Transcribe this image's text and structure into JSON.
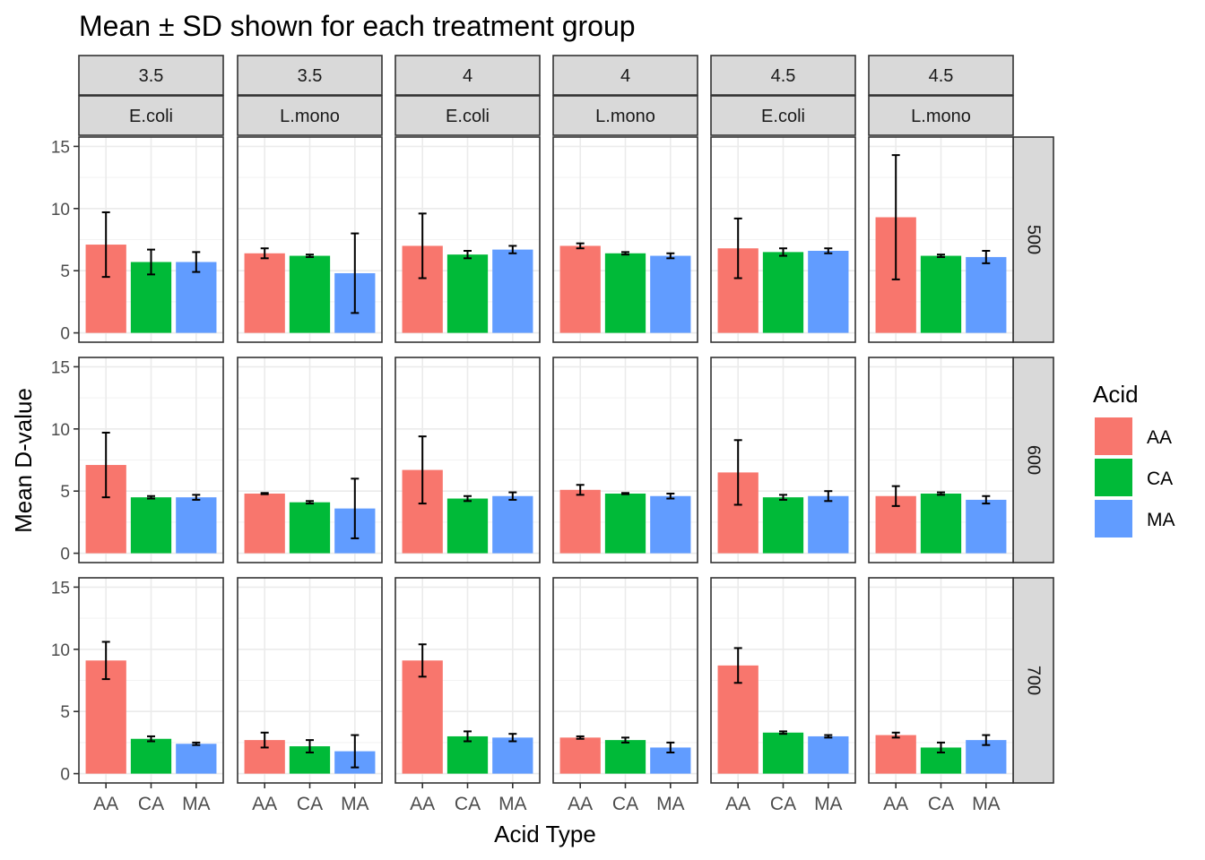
{
  "chart_data": {
    "type": "bar",
    "title": "Mean ± SD shown for each treatment group",
    "xlabel": "Acid Type",
    "ylabel": "Mean D-value",
    "ylim": [
      0,
      15
    ],
    "yticks": [
      0,
      5,
      10,
      15
    ],
    "categories": [
      "AA",
      "CA",
      "MA"
    ],
    "legend": {
      "title": "Acid",
      "position": "right",
      "entries": [
        {
          "label": "AA",
          "color": "#F8766D"
        },
        {
          "label": "CA",
          "color": "#00BA38"
        },
        {
          "label": "MA",
          "color": "#619CFF"
        }
      ]
    },
    "column_facets": [
      {
        "ph": "3.5",
        "organism": "E.coli"
      },
      {
        "ph": "3.5",
        "organism": "L.mono"
      },
      {
        "ph": "4",
        "organism": "E.coli"
      },
      {
        "ph": "4",
        "organism": "L.mono"
      },
      {
        "ph": "4.5",
        "organism": "E.coli"
      },
      {
        "ph": "4.5",
        "organism": "L.mono"
      }
    ],
    "row_facets": [
      "500",
      "600",
      "700"
    ],
    "panels": [
      [
        {
          "means": [
            7.1,
            5.7,
            5.7
          ],
          "sd": [
            2.6,
            1.0,
            0.8
          ]
        },
        {
          "means": [
            6.4,
            6.2,
            4.8
          ],
          "sd": [
            0.4,
            0.1,
            3.2
          ]
        },
        {
          "means": [
            7.0,
            6.3,
            6.7
          ],
          "sd": [
            2.6,
            0.3,
            0.3
          ]
        },
        {
          "means": [
            7.0,
            6.4,
            6.2
          ],
          "sd": [
            0.2,
            0.1,
            0.2
          ]
        },
        {
          "means": [
            6.8,
            6.5,
            6.6
          ],
          "sd": [
            2.4,
            0.3,
            0.2
          ]
        },
        {
          "means": [
            9.3,
            6.2,
            6.1
          ],
          "sd": [
            5.0,
            0.1,
            0.5
          ]
        }
      ],
      [
        {
          "means": [
            7.1,
            4.5,
            4.5
          ],
          "sd": [
            2.6,
            0.1,
            0.2
          ]
        },
        {
          "means": [
            4.8,
            4.1,
            3.6
          ],
          "sd": [
            0.05,
            0.1,
            2.4
          ]
        },
        {
          "means": [
            6.7,
            4.4,
            4.6
          ],
          "sd": [
            2.7,
            0.2,
            0.3
          ]
        },
        {
          "means": [
            5.1,
            4.8,
            4.6
          ],
          "sd": [
            0.4,
            0.05,
            0.2
          ]
        },
        {
          "means": [
            6.5,
            4.5,
            4.6
          ],
          "sd": [
            2.6,
            0.2,
            0.4
          ]
        },
        {
          "means": [
            4.6,
            4.8,
            4.3
          ],
          "sd": [
            0.8,
            0.1,
            0.3
          ]
        }
      ],
      [
        {
          "means": [
            9.1,
            2.8,
            2.4
          ],
          "sd": [
            1.5,
            0.2,
            0.1
          ]
        },
        {
          "means": [
            2.7,
            2.2,
            1.8
          ],
          "sd": [
            0.6,
            0.5,
            1.3
          ]
        },
        {
          "means": [
            9.1,
            3.0,
            2.9
          ],
          "sd": [
            1.3,
            0.4,
            0.3
          ]
        },
        {
          "means": [
            2.9,
            2.7,
            2.1
          ],
          "sd": [
            0.1,
            0.2,
            0.4
          ]
        },
        {
          "means": [
            8.7,
            3.3,
            3.0
          ],
          "sd": [
            1.4,
            0.1,
            0.1
          ]
        },
        {
          "means": [
            3.1,
            2.1,
            2.7
          ],
          "sd": [
            0.2,
            0.4,
            0.4
          ]
        }
      ]
    ]
  }
}
